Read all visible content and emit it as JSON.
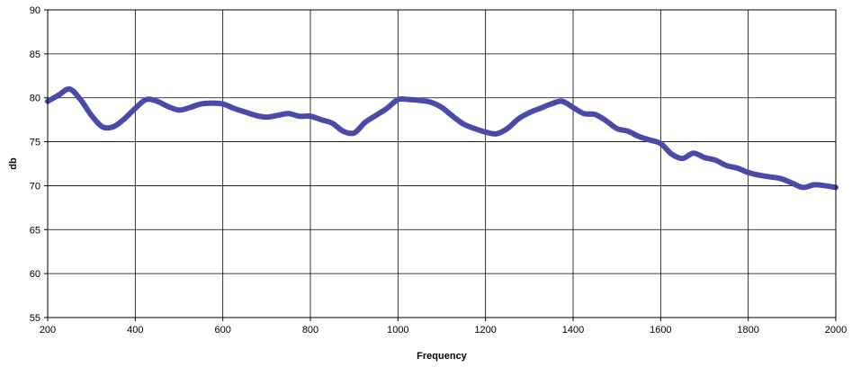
{
  "chart_data": {
    "type": "line",
    "title": "",
    "xlabel": "Frequency",
    "ylabel": "db",
    "xlim": [
      200,
      2000
    ],
    "ylim": [
      55,
      90
    ],
    "xticks": [
      200,
      400,
      600,
      800,
      1000,
      1200,
      1400,
      1600,
      1800,
      2000
    ],
    "yticks": [
      55,
      60,
      65,
      70,
      75,
      80,
      85,
      90
    ],
    "grid": true,
    "legend": "none",
    "colors": {
      "line": "#4a4aa8",
      "grid": "#000000",
      "axis": "#000000"
    },
    "series": [
      {
        "x": [
          200,
          225,
          250,
          275,
          300,
          325,
          350,
          375,
          400,
          425,
          450,
          475,
          500,
          525,
          550,
          575,
          600,
          625,
          650,
          675,
          700,
          725,
          750,
          775,
          800,
          825,
          850,
          875,
          900,
          925,
          950,
          975,
          1000,
          1025,
          1050,
          1075,
          1100,
          1125,
          1150,
          1175,
          1200,
          1225,
          1250,
          1275,
          1300,
          1325,
          1350,
          1375,
          1400,
          1425,
          1450,
          1475,
          1500,
          1525,
          1550,
          1575,
          1600,
          1625,
          1650,
          1675,
          1700,
          1725,
          1750,
          1775,
          1800,
          1825,
          1850,
          1875,
          1900,
          1925,
          1950,
          1975,
          2000
        ],
        "values": [
          79.6,
          80.3,
          81.0,
          79.8,
          78.0,
          76.7,
          76.7,
          77.6,
          78.8,
          79.8,
          79.6,
          79.0,
          78.6,
          78.9,
          79.3,
          79.4,
          79.3,
          78.8,
          78.4,
          78.0,
          77.8,
          78.0,
          78.2,
          77.9,
          77.9,
          77.5,
          77.1,
          76.2,
          76.0,
          77.2,
          78.0,
          78.8,
          79.8,
          79.8,
          79.7,
          79.5,
          78.9,
          77.9,
          77.0,
          76.5,
          76.1,
          75.9,
          76.5,
          77.6,
          78.3,
          78.8,
          79.3,
          79.6,
          78.9,
          78.2,
          78.1,
          77.4,
          76.5,
          76.2,
          75.6,
          75.2,
          74.8,
          73.6,
          73.1,
          73.7,
          73.2,
          72.9,
          72.3,
          72.0,
          71.5,
          71.2,
          71.0,
          70.8,
          70.3,
          69.8,
          70.1,
          70.0,
          69.8
        ]
      }
    ]
  }
}
